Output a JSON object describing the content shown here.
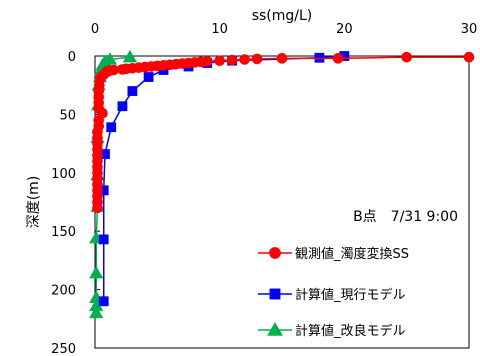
{
  "chart_data": {
    "type": "line",
    "xlabel": "ss(mg/L)",
    "ylabel": "深度(m)",
    "xlim": [
      0,
      30
    ],
    "ylim": [
      0,
      250
    ],
    "y_inverted": true,
    "x_axis_position": "top",
    "x_ticks": [
      0,
      10,
      20,
      30
    ],
    "y_ticks": [
      0,
      50,
      100,
      150,
      200,
      250
    ],
    "grid": false,
    "legend_position": "bottom-right",
    "annotation": "B点　7/31 9:00",
    "series": [
      {
        "name": "観測値_濁度変換SS",
        "color": "#ff0000",
        "marker": "circle",
        "points": [
          [
            30,
            1
          ],
          [
            25,
            1
          ],
          [
            19.5,
            2
          ],
          [
            15,
            2
          ],
          [
            13,
            2.5
          ],
          [
            12,
            3
          ],
          [
            11,
            3.5
          ],
          [
            10,
            4
          ],
          [
            9,
            4.5
          ],
          [
            8.5,
            5
          ],
          [
            8,
            5.5
          ],
          [
            7.5,
            6
          ],
          [
            7,
            6.5
          ],
          [
            6.5,
            7
          ],
          [
            6,
            7.5
          ],
          [
            5.5,
            8
          ],
          [
            5,
            8.5
          ],
          [
            4.5,
            9
          ],
          [
            4,
            9.5
          ],
          [
            3.5,
            10
          ],
          [
            3,
            10.5
          ],
          [
            2.5,
            11
          ],
          [
            2.2,
            11.5
          ],
          [
            1.5,
            12
          ],
          [
            1.2,
            12.5
          ],
          [
            1,
            13
          ],
          [
            0.9,
            14
          ],
          [
            0.7,
            16
          ],
          [
            0.5,
            18
          ],
          [
            0.4,
            20
          ],
          [
            0.35,
            25
          ],
          [
            0.3,
            30
          ],
          [
            0.3,
            35
          ],
          [
            0.3,
            40
          ],
          [
            0.3,
            45
          ],
          [
            0.6,
            49
          ],
          [
            0.3,
            55
          ],
          [
            0.3,
            60
          ],
          [
            0.2,
            65
          ],
          [
            0.2,
            70
          ],
          [
            0.2,
            75
          ],
          [
            0.2,
            80
          ],
          [
            0.2,
            85
          ],
          [
            0.2,
            90
          ],
          [
            0.2,
            95
          ],
          [
            0.2,
            100
          ],
          [
            0.2,
            105
          ],
          [
            0.2,
            110
          ],
          [
            0.2,
            115
          ],
          [
            0.2,
            120
          ],
          [
            0.2,
            125
          ],
          [
            0.2,
            130
          ]
        ]
      },
      {
        "name": "計算値_現行モデル",
        "color": "#0000ff",
        "marker": "square",
        "points": [
          [
            20,
            0
          ],
          [
            18,
            1.5
          ],
          [
            11,
            4
          ],
          [
            9,
            6
          ],
          [
            7.5,
            9
          ],
          [
            5.5,
            12
          ],
          [
            4.3,
            18
          ],
          [
            3,
            30
          ],
          [
            2.2,
            43
          ],
          [
            1.3,
            61
          ],
          [
            0.8,
            84
          ],
          [
            0.7,
            115
          ],
          [
            0.7,
            157
          ],
          [
            0.7,
            210
          ]
        ]
      },
      {
        "name": "計算値_改良モデル",
        "color": "#00b050",
        "marker": "triangle",
        "points": [
          [
            2.8,
            1
          ],
          [
            1.2,
            3
          ],
          [
            0.8,
            5
          ],
          [
            0.6,
            8
          ],
          [
            0.5,
            12
          ],
          [
            0.4,
            18
          ],
          [
            0.3,
            25
          ],
          [
            0.25,
            42
          ],
          [
            0.2,
            70
          ],
          [
            0.2,
            102
          ],
          [
            0.2,
            129
          ],
          [
            0.1,
            156
          ],
          [
            0.1,
            186
          ],
          [
            0.1,
            207
          ],
          [
            0.1,
            214
          ],
          [
            0.1,
            220
          ]
        ]
      }
    ]
  }
}
